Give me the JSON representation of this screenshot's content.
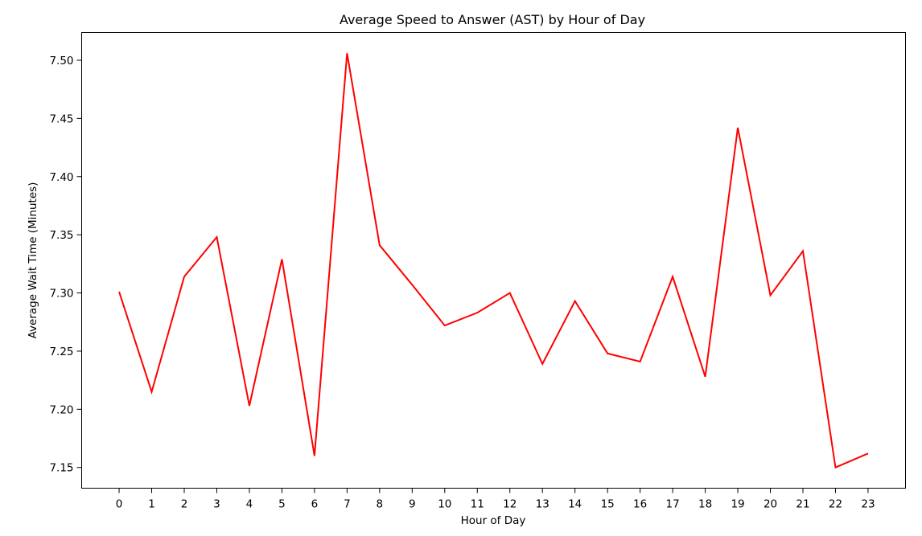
{
  "chart_data": {
    "type": "line",
    "title": "Average Speed to Answer (AST) by Hour of Day",
    "xlabel": "Hour of Day",
    "ylabel": "Average Wait Time (Minutes)",
    "x": [
      0,
      1,
      2,
      3,
      4,
      5,
      6,
      7,
      8,
      9,
      10,
      11,
      12,
      13,
      14,
      15,
      16,
      17,
      18,
      19,
      20,
      21,
      22,
      23
    ],
    "series": [
      {
        "values": [
          7.301,
          7.215,
          7.314,
          7.348,
          7.203,
          7.329,
          7.16,
          7.506,
          7.341,
          7.307,
          7.272,
          7.283,
          7.3,
          7.239,
          7.293,
          7.248,
          7.241,
          7.314,
          7.228,
          7.442,
          7.298,
          7.336,
          7.15,
          7.162
        ],
        "color": "#ff0000"
      }
    ],
    "xticks": [
      "0",
      "1",
      "2",
      "3",
      "4",
      "5",
      "6",
      "7",
      "8",
      "9",
      "10",
      "11",
      "12",
      "13",
      "14",
      "15",
      "16",
      "17",
      "18",
      "19",
      "20",
      "21",
      "22",
      "23"
    ],
    "yticks": [
      "7.15",
      "7.20",
      "7.25",
      "7.30",
      "7.35",
      "7.40",
      "7.45",
      "7.50"
    ],
    "ytick_values": [
      7.15,
      7.2,
      7.25,
      7.3,
      7.35,
      7.4,
      7.45,
      7.5
    ],
    "xlim": [
      -1.15,
      24.15
    ],
    "ylim": [
      7.1322,
      7.5238
    ],
    "grid": false,
    "legend": "none"
  }
}
